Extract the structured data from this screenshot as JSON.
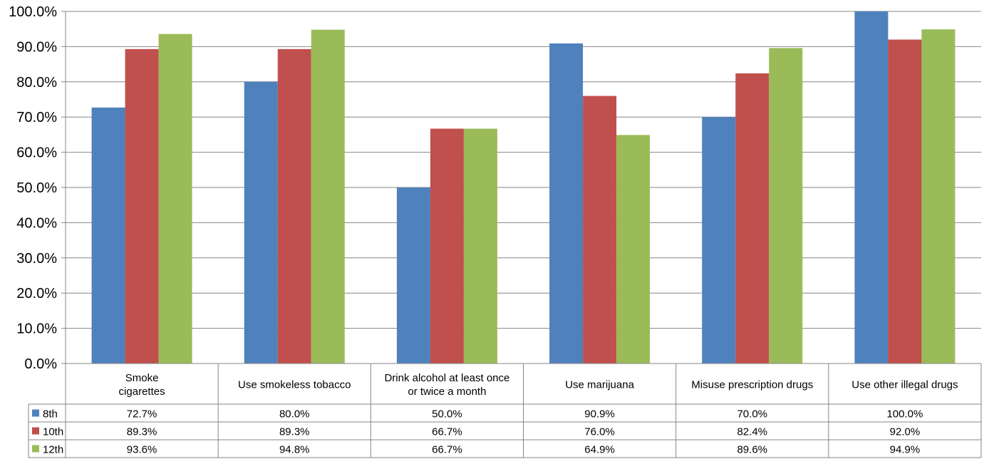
{
  "chart_data": {
    "type": "bar",
    "categories": [
      [
        "Smoke",
        "cigarettes"
      ],
      [
        "Use smokeless tobacco"
      ],
      [
        "Drink alcohol at least once",
        "or twice a month"
      ],
      [
        "Use marijuana"
      ],
      [
        "Misuse prescription drugs"
      ],
      [
        "Use other illegal drugs"
      ]
    ],
    "series": [
      {
        "name": "8th",
        "color": "#4F81BD",
        "values": [
          72.7,
          80.0,
          50.0,
          90.9,
          70.0,
          100.0
        ],
        "labels": [
          "72.7%",
          "80.0%",
          "50.0%",
          "90.9%",
          "70.0%",
          "100.0%"
        ]
      },
      {
        "name": "10th",
        "color": "#C0504D",
        "values": [
          89.3,
          89.3,
          66.7,
          76.0,
          82.4,
          92.0
        ],
        "labels": [
          "89.3%",
          "89.3%",
          "66.7%",
          "76.0%",
          "82.4%",
          "92.0%"
        ]
      },
      {
        "name": "12th",
        "color": "#9BBB59",
        "values": [
          93.6,
          94.8,
          66.7,
          64.9,
          89.6,
          94.9
        ],
        "labels": [
          "93.6%",
          "94.8%",
          "66.7%",
          "64.9%",
          "89.6%",
          "94.9%"
        ]
      }
    ],
    "yticks": [
      "0.0%",
      "10.0%",
      "20.0%",
      "30.0%",
      "40.0%",
      "50.0%",
      "60.0%",
      "70.0%",
      "80.0%",
      "90.0%",
      "100.0%"
    ],
    "ylim": [
      0,
      100
    ],
    "grid": true,
    "legend": "data-table"
  }
}
